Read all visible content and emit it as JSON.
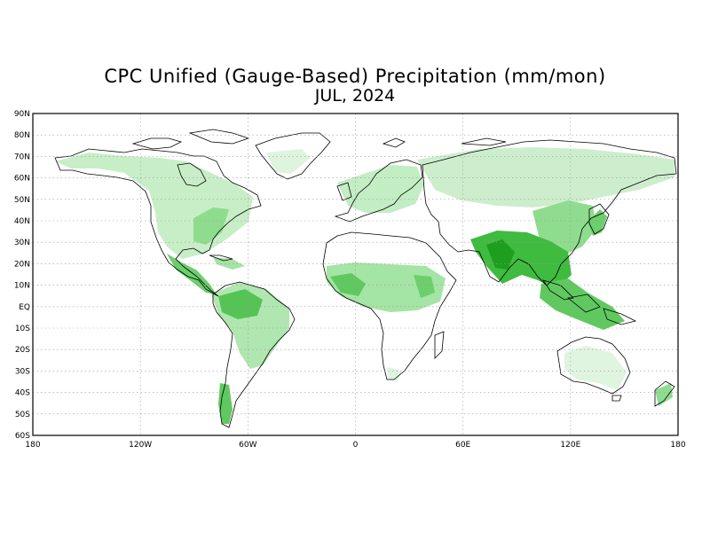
{
  "title": "CPC Unified (Gauge-Based) Precipitation (mm/mon)",
  "subtitle": "JUL, 2024",
  "map": {
    "projection": "equirectangular",
    "lon_range": [
      -180,
      180
    ],
    "lat_range": [
      -60,
      90
    ],
    "grid": "dotted",
    "land_color": "#ffffff",
    "coast_color": "#000000",
    "lat_labels": [
      "90N",
      "80N",
      "70N",
      "60N",
      "50N",
      "40N",
      "30N",
      "20N",
      "10N",
      "EQ",
      "10S",
      "20S",
      "30S",
      "40S",
      "50S",
      "60S"
    ],
    "lon_labels": [
      "180",
      "120W",
      "60W",
      "0",
      "60E",
      "120E",
      "180"
    ],
    "color_scale": [
      "#e6f7e6",
      "#c3edc3",
      "#9ddf9d",
      "#6ccf6c",
      "#3fbb3f",
      "#1e9e1e",
      "#0b7a0b"
    ]
  }
}
